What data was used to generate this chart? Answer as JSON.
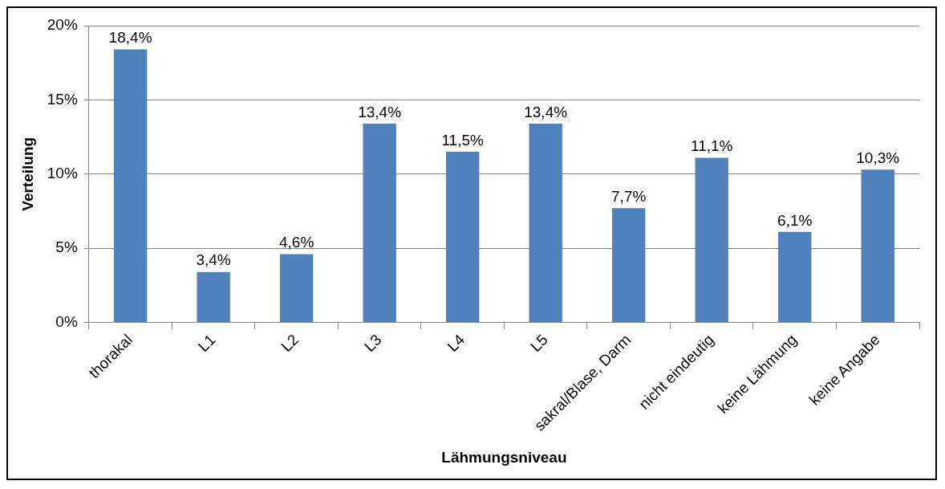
{
  "chart_data": {
    "type": "bar",
    "xlabel": "Lähmungsniveau",
    "ylabel": "Verteilung",
    "categories": [
      "thorakal",
      "L1",
      "L2",
      "L3",
      "L4",
      "L5",
      "sakral/Blase, Darm",
      "nicht eindeutig",
      "keine Lähmung",
      "keine Angabe"
    ],
    "values": [
      18.4,
      3.4,
      4.6,
      13.4,
      11.5,
      13.4,
      7.7,
      11.1,
      6.1,
      10.3
    ],
    "value_labels": [
      "18,4%",
      "3,4%",
      "4,6%",
      "13,4%",
      "11,5%",
      "13,4%",
      "7,7%",
      "11,1%",
      "6,1%",
      "10,3%"
    ],
    "color": "#4f81bd",
    "ylim": [
      0,
      20
    ],
    "yticks": [
      {
        "value": 0,
        "label": "0%"
      },
      {
        "value": 5,
        "label": "5%"
      },
      {
        "value": 10,
        "label": "10%"
      },
      {
        "value": 15,
        "label": "15%"
      },
      {
        "value": 20,
        "label": "20%"
      }
    ],
    "grid": "y",
    "legend": false
  }
}
